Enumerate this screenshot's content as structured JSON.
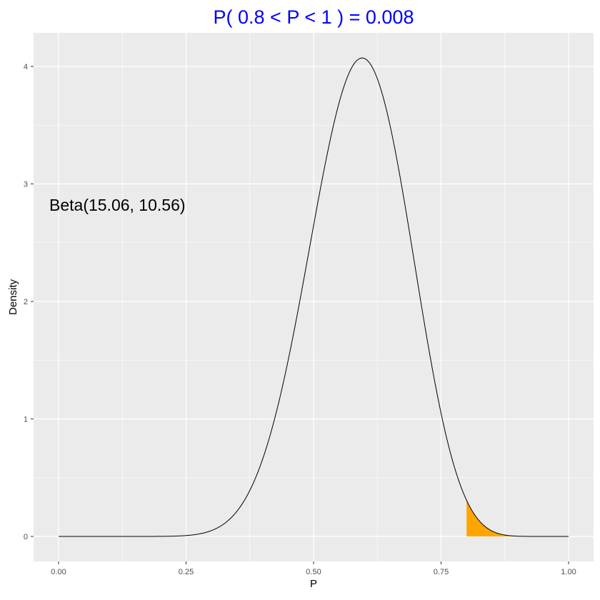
{
  "chart_data": {
    "type": "area",
    "title": "P( 0.8 < P <  1 ) = 0.008",
    "xlabel": "P",
    "ylabel": "Density",
    "xlim": [
      0,
      1
    ],
    "ylim": [
      0,
      4.2
    ],
    "x_ticks": [
      0,
      0.25,
      0.5,
      0.75,
      1
    ],
    "x_tick_labels": [
      "0.00",
      "0.25",
      "0.50",
      "0.75",
      "1.00"
    ],
    "y_ticks": [
      0,
      1,
      2,
      3,
      4
    ],
    "y_tick_labels": [
      "0",
      "1",
      "2",
      "3",
      "4"
    ],
    "grid": true,
    "distribution": {
      "family": "Beta",
      "alpha": 15.06,
      "beta": 10.56
    },
    "shaded_region": {
      "from": 0.8,
      "to": 1.0,
      "probability": 0.008
    },
    "annotation": {
      "text": "Beta(15.06, 10.56)",
      "x": 0.0,
      "y": 2.8
    },
    "series": [
      {
        "x": [
          0,
          0.05,
          0.1,
          0.15,
          0.2,
          0.25,
          0.3,
          0.35,
          0.4,
          0.45,
          0.5,
          0.55,
          0.6,
          0.65,
          0.7,
          0.75,
          0.8,
          0.85,
          0.9,
          0.95,
          1.0
        ],
        "y": [
          0,
          0,
          0,
          0,
          0,
          0.004,
          0.04,
          0.25,
          0.86,
          2.0,
          3.28,
          4.0,
          4.05,
          3.45,
          2.15,
          1.0,
          0.29,
          0.05,
          0.003,
          0,
          0
        ]
      }
    ],
    "colors": {
      "curve": "#000000",
      "fill": "#ffa500",
      "panel": "#ebebeb",
      "grid": "#ffffff",
      "title": "#0000ff"
    }
  }
}
